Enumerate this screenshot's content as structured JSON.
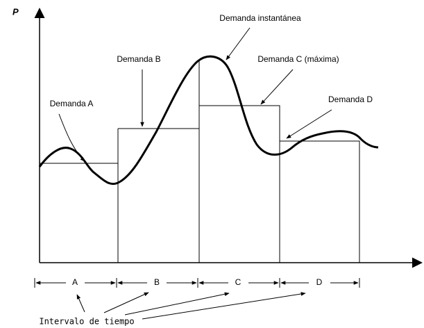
{
  "axis": {
    "y_label": "P"
  },
  "annotations": {
    "instantaneous": "Demanda instantánea",
    "a": "Demanda A",
    "b": "Demanda B",
    "c": "Demanda C (máxima)",
    "d": "Demanda D"
  },
  "intervals": {
    "labels": [
      "A",
      "B",
      "C",
      "D"
    ],
    "caption": "Intervalo de tiempo"
  }
}
